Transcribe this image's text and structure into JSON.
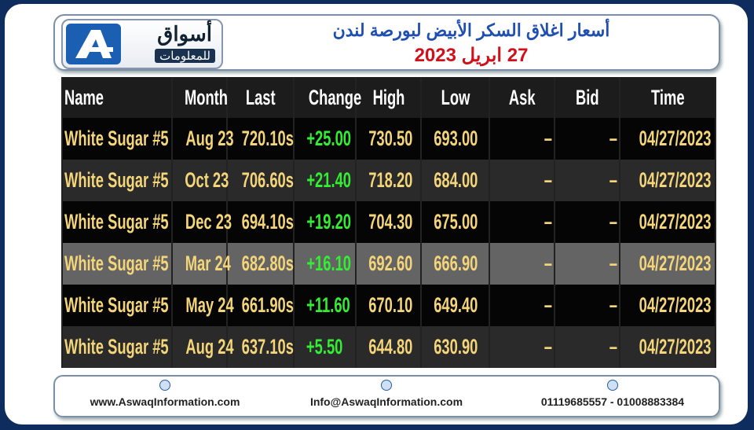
{
  "header": {
    "logo_name": "أسواق",
    "logo_sub": "للمعلومات",
    "title": "أسعار اغلاق السكر الأبيض لبورصة لندن",
    "date": "27 ابريل 2023"
  },
  "table": {
    "columns": [
      "Name",
      "Month",
      "Last",
      "Change",
      "High",
      "Low",
      "Ask",
      "Bid",
      "Time"
    ],
    "rows": [
      [
        "White Sugar #5",
        "Aug 23",
        "720.10s",
        "+25.00",
        "730.50",
        "693.00",
        "–",
        "–",
        "04/27/2023"
      ],
      [
        "White Sugar #5",
        "Oct 23",
        "706.60s",
        "+21.40",
        "718.20",
        "684.00",
        "–",
        "–",
        "04/27/2023"
      ],
      [
        "White Sugar #5",
        "Dec 23",
        "694.10s",
        "+19.20",
        "704.30",
        "675.00",
        "–",
        "–",
        "04/27/2023"
      ],
      [
        "White Sugar #5",
        "Mar 24",
        "682.80s",
        "+16.10",
        "692.60",
        "666.90",
        "–",
        "–",
        "04/27/2023"
      ],
      [
        "White Sugar #5",
        "May 24",
        "661.90s",
        "+11.60",
        "670.10",
        "649.40",
        "–",
        "–",
        "04/27/2023"
      ],
      [
        "White Sugar #5",
        "Aug 24",
        "637.10s",
        "+5.50",
        "644.80",
        "630.90",
        "–",
        "–",
        "04/27/2023"
      ]
    ]
  },
  "footer": {
    "website": "www.AswaqInformation.com",
    "email": "Info@AswaqInformation.com",
    "phones": "01119685557 - 01008883384"
  }
}
